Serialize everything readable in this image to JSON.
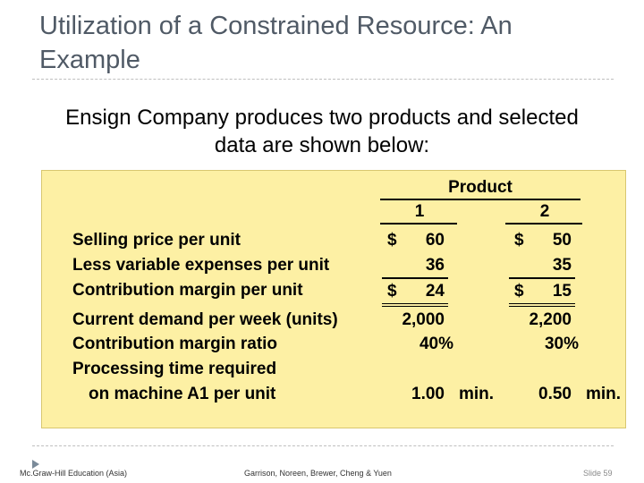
{
  "slide": {
    "title": "Utilization of a Constrained Resource: An Example",
    "subtitle": "Ensign Company produces two products and selected data are shown below:"
  },
  "table": {
    "header": "Product",
    "col1": "1",
    "col2": "2",
    "rows": {
      "selling_price": {
        "label": "Selling price per unit",
        "p1_sym": "$",
        "p1": "60",
        "p2_sym": "$",
        "p2": "50"
      },
      "variable_expenses": {
        "label": "Less variable expenses per unit",
        "p1": "36",
        "p2": "35"
      },
      "contribution_margin": {
        "label": "Contribution margin per unit",
        "p1_sym": "$",
        "p1": "24",
        "p2_sym": "$",
        "p2": "15"
      },
      "current_demand": {
        "label": "Current demand per week (units)",
        "p1": "2,000",
        "p2": "2,200"
      },
      "cm_ratio": {
        "label": "Contribution margin ratio",
        "p1": "40%",
        "p2": "30%"
      },
      "processing_time": {
        "label_line1": "Processing time required",
        "label_line2": "on machine A1 per unit",
        "p1": "1.00",
        "p1_unit": "min.",
        "p2": "0.50",
        "p2_unit": "min."
      }
    }
  },
  "footer": {
    "left": "Mc.Graw-Hill Education (Asia)",
    "center": "Garrison, Noreen, Brewer, Cheng & Yuen",
    "right": "Slide 59"
  }
}
